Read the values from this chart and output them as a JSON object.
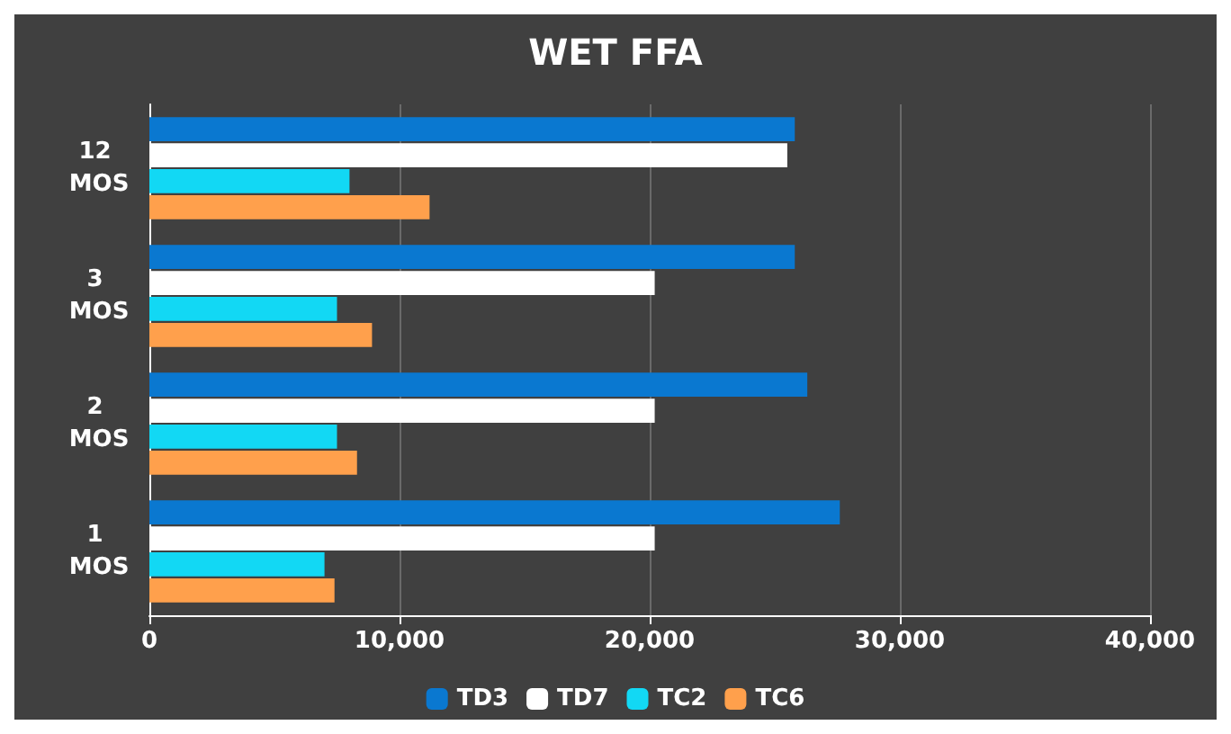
{
  "chart_data": {
    "type": "bar",
    "orientation": "horizontal",
    "title": "WET FFA",
    "categories": [
      "12 MOS",
      "3 MOS",
      "2 MOS",
      "1 MOS"
    ],
    "series": [
      {
        "name": "TD3",
        "color": "#0a78d0",
        "values": [
          25800,
          25800,
          26300,
          27600
        ]
      },
      {
        "name": "TD7",
        "color": "#ffffff",
        "values": [
          25500,
          20200,
          20200,
          20200
        ]
      },
      {
        "name": "TC2",
        "color": "#12d8f4",
        "values": [
          8000,
          7500,
          7500,
          7000
        ]
      },
      {
        "name": "TC6",
        "color": "#ffa04c",
        "values": [
          11200,
          8900,
          8300,
          7400
        ]
      }
    ],
    "xlim": [
      0,
      40000
    ],
    "xticks": [
      0,
      {
        "value": 10000,
        "label": "10,000"
      },
      {
        "value": 20000,
        "label": "20,000"
      },
      {
        "value": 30000,
        "label": "30,000"
      },
      {
        "value": 40000,
        "label": "40,000"
      }
    ],
    "grid": "x",
    "legend": "bottom"
  }
}
